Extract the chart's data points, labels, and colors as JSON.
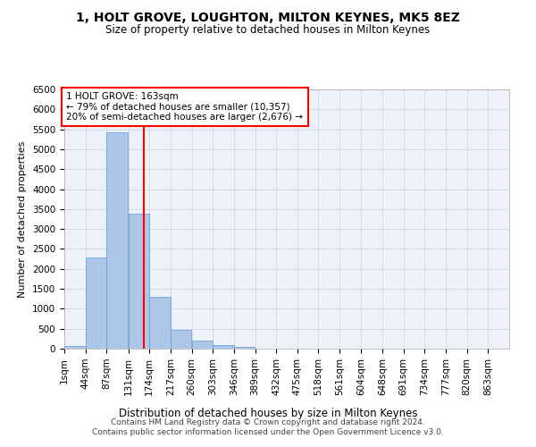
{
  "title": "1, HOLT GROVE, LOUGHTON, MILTON KEYNES, MK5 8EZ",
  "subtitle": "Size of property relative to detached houses in Milton Keynes",
  "xlabel": "Distribution of detached houses by size in Milton Keynes",
  "ylabel": "Number of detached properties",
  "footer_line1": "Contains HM Land Registry data © Crown copyright and database right 2024.",
  "footer_line2": "Contains public sector information licensed under the Open Government Licence v3.0.",
  "annotation_title": "1 HOLT GROVE: 163sqm",
  "annotation_line2": "← 79% of detached houses are smaller (10,357)",
  "annotation_line3": "20% of semi-detached houses are larger (2,676) →",
  "categories": [
    "1sqm",
    "44sqm",
    "87sqm",
    "131sqm",
    "174sqm",
    "217sqm",
    "260sqm",
    "303sqm",
    "346sqm",
    "389sqm",
    "432sqm",
    "475sqm",
    "518sqm",
    "561sqm",
    "604sqm",
    "648sqm",
    "691sqm",
    "734sqm",
    "777sqm",
    "820sqm",
    "863sqm"
  ],
  "bin_edges": [
    1,
    44,
    87,
    131,
    174,
    217,
    260,
    303,
    346,
    389,
    432,
    475,
    518,
    561,
    604,
    648,
    691,
    734,
    777,
    820,
    863,
    906
  ],
  "values": [
    75,
    2280,
    5420,
    3380,
    1300,
    470,
    210,
    95,
    45,
    0,
    0,
    0,
    0,
    0,
    0,
    0,
    0,
    0,
    0,
    0,
    0
  ],
  "bar_color": "#aec6e8",
  "bar_edge_color": "#5b9bd5",
  "vline_color": "red",
  "vline_x": 163,
  "ylim": [
    0,
    6500
  ],
  "yticks": [
    0,
    500,
    1000,
    1500,
    2000,
    2500,
    3000,
    3500,
    4000,
    4500,
    5000,
    5500,
    6000,
    6500
  ],
  "grid_color": "#d0d8e8",
  "background_color": "#eef2f8",
  "title_fontsize": 10,
  "subtitle_fontsize": 8.5,
  "xlabel_fontsize": 8.5,
  "ylabel_fontsize": 8,
  "tick_fontsize": 7.5,
  "annotation_fontsize": 7.5,
  "footer_fontsize": 6.5
}
